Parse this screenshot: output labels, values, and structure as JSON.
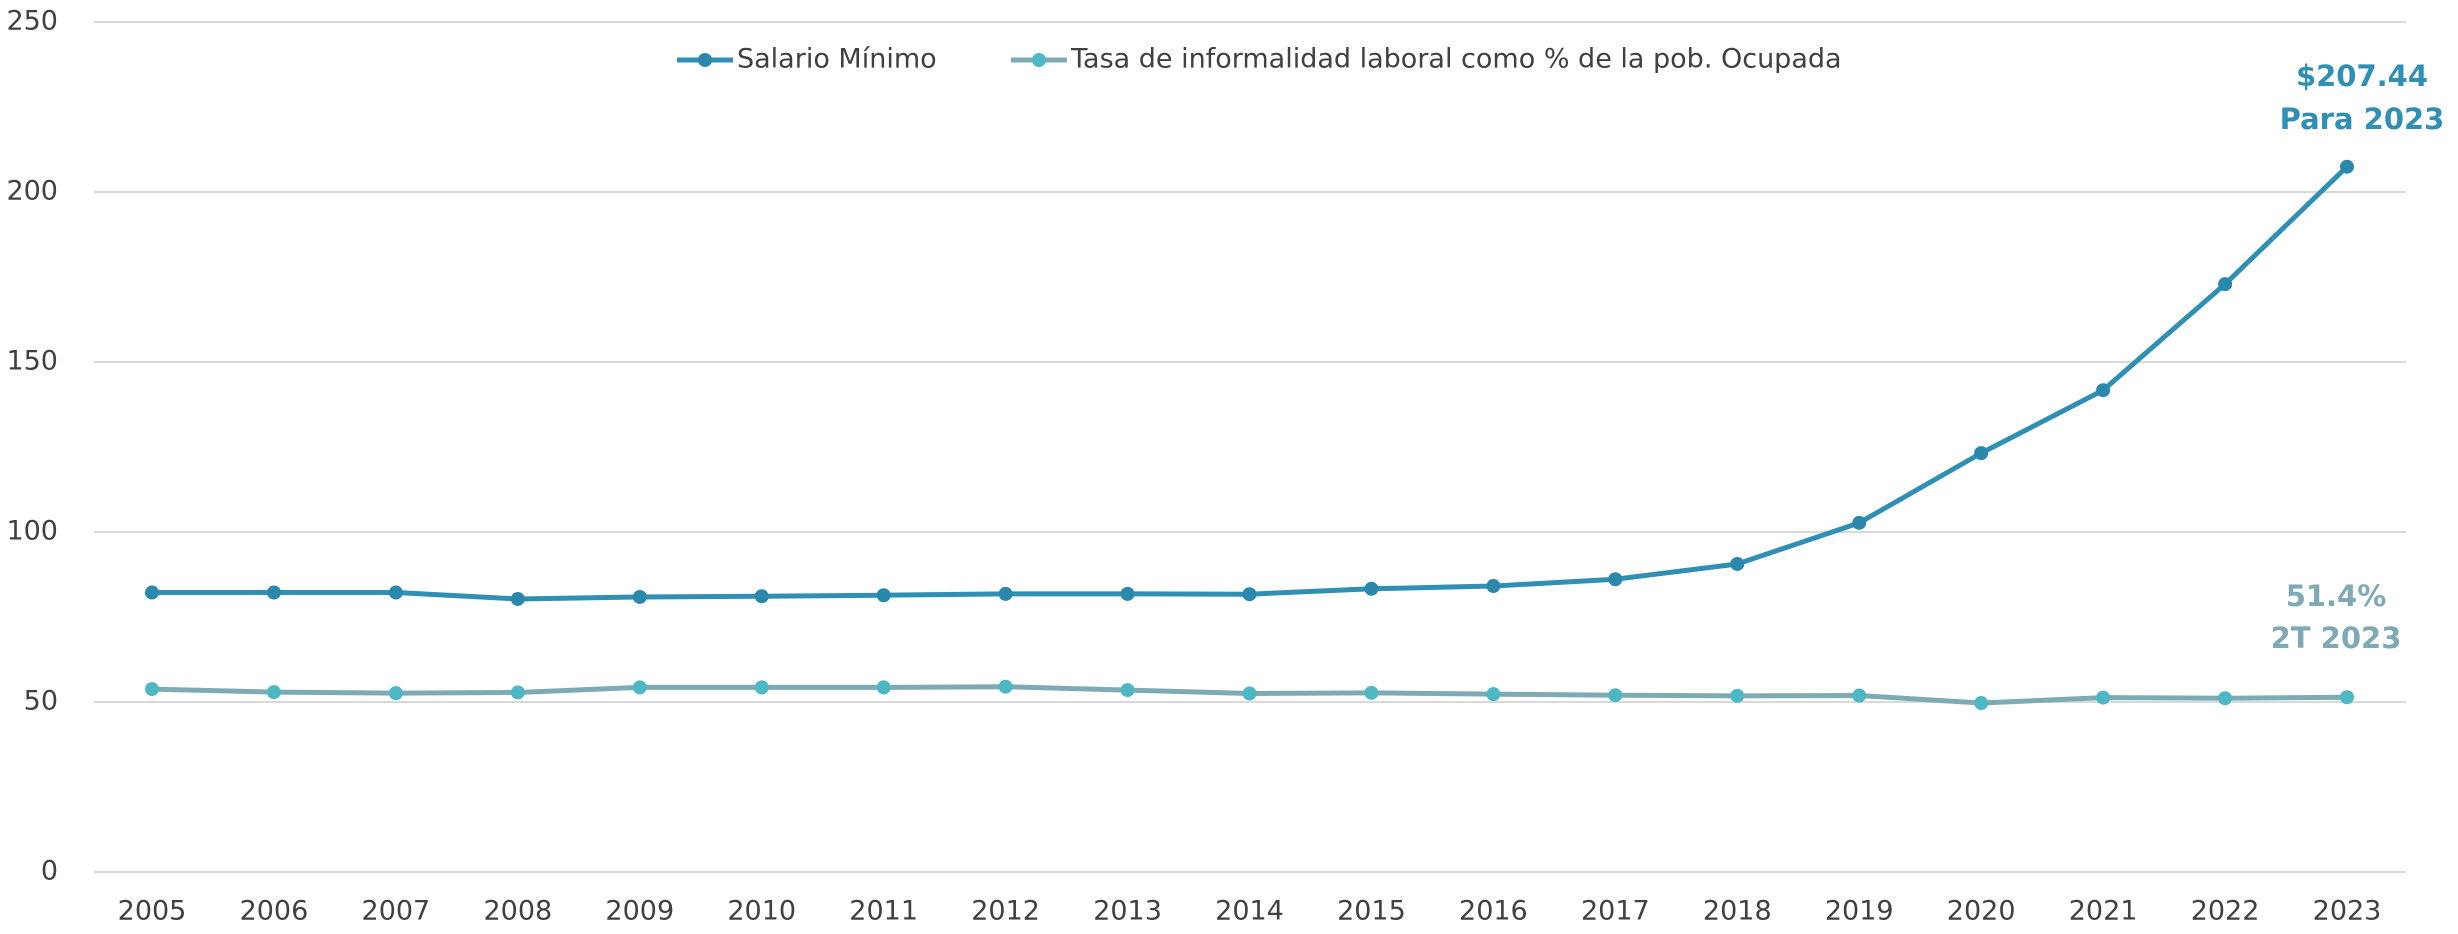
{
  "chart_data": {
    "type": "line",
    "categories": [
      "2005",
      "2006",
      "2007",
      "2008",
      "2009",
      "2010",
      "2011",
      "2012",
      "2013",
      "2014",
      "2015",
      "2016",
      "2017",
      "2018",
      "2019",
      "2020",
      "2021",
      "2022",
      "2023"
    ],
    "series": [
      {
        "name": "Salario Mínimo",
        "color": "#2f8fb5",
        "marker_color": "#2a88ad",
        "values": [
          82.2,
          82.2,
          82.2,
          80.3,
          80.9,
          81.1,
          81.4,
          81.8,
          81.8,
          81.7,
          83.3,
          84.1,
          86.1,
          90.6,
          102.7,
          123.2,
          141.7,
          172.9,
          207.44
        ]
      },
      {
        "name": "Tasa de informalidad laboral como % de la pob. Ocupada",
        "color": "#7eaab6",
        "marker_color": "#4db8c4",
        "values": [
          53.8,
          52.9,
          52.6,
          52.8,
          54.3,
          54.3,
          54.3,
          54.5,
          53.5,
          52.5,
          52.7,
          52.3,
          52.0,
          51.8,
          51.9,
          49.7,
          51.3,
          51.1,
          51.4
        ]
      }
    ],
    "annotations": [
      {
        "text": "$207.44",
        "color": "#2f8fb5"
      },
      {
        "text": "Para 2023",
        "color": "#2f8fb5"
      },
      {
        "text": "51.4%",
        "color": "#7eaab6"
      },
      {
        "text": "2T 2023",
        "color": "#7eaab6"
      }
    ],
    "ylim": [
      0,
      250
    ],
    "yticks": [
      0,
      50,
      100,
      150,
      200,
      250
    ],
    "grid": true,
    "legend": "top"
  }
}
